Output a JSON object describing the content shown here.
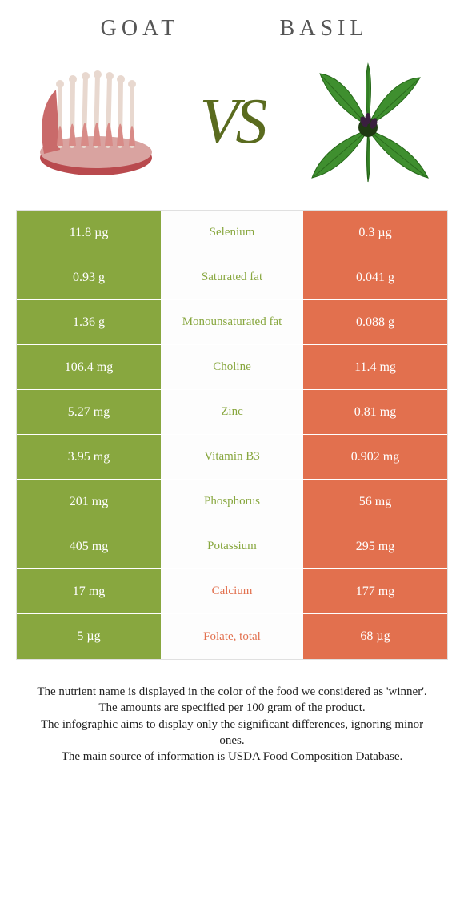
{
  "left": {
    "title": "GOAT",
    "color": "#88a73f",
    "image_type": "meat"
  },
  "right": {
    "title": "BASIL",
    "color": "#e2704e",
    "image_type": "basil"
  },
  "vs_text": "VS",
  "vs_color": "#5a6b1f",
  "rows": [
    {
      "name": "Selenium",
      "left": "11.8 µg",
      "right": "0.3 µg",
      "winner": "left"
    },
    {
      "name": "Saturated fat",
      "left": "0.93 g",
      "right": "0.041 g",
      "winner": "left"
    },
    {
      "name": "Monounsaturated fat",
      "left": "1.36 g",
      "right": "0.088 g",
      "winner": "left"
    },
    {
      "name": "Choline",
      "left": "106.4 mg",
      "right": "11.4 mg",
      "winner": "left"
    },
    {
      "name": "Zinc",
      "left": "5.27 mg",
      "right": "0.81 mg",
      "winner": "left"
    },
    {
      "name": "Vitamin B3",
      "left": "3.95 mg",
      "right": "0.902 mg",
      "winner": "left"
    },
    {
      "name": "Phosphorus",
      "left": "201 mg",
      "right": "56 mg",
      "winner": "left"
    },
    {
      "name": "Potassium",
      "left": "405 mg",
      "right": "295 mg",
      "winner": "left"
    },
    {
      "name": "Calcium",
      "left": "17 mg",
      "right": "177 mg",
      "winner": "right"
    },
    {
      "name": "Folate, total",
      "left": "5 µg",
      "right": "68 µg",
      "winner": "right"
    }
  ],
  "footer_lines": [
    "The nutrient name is displayed in the color of the food we considered as 'winner'.",
    "The amounts are specified per 100 gram of the product.",
    "The infographic aims to display only the significant differences, ignoring minor ones.",
    "The main source of information is USDA Food Composition Database."
  ]
}
